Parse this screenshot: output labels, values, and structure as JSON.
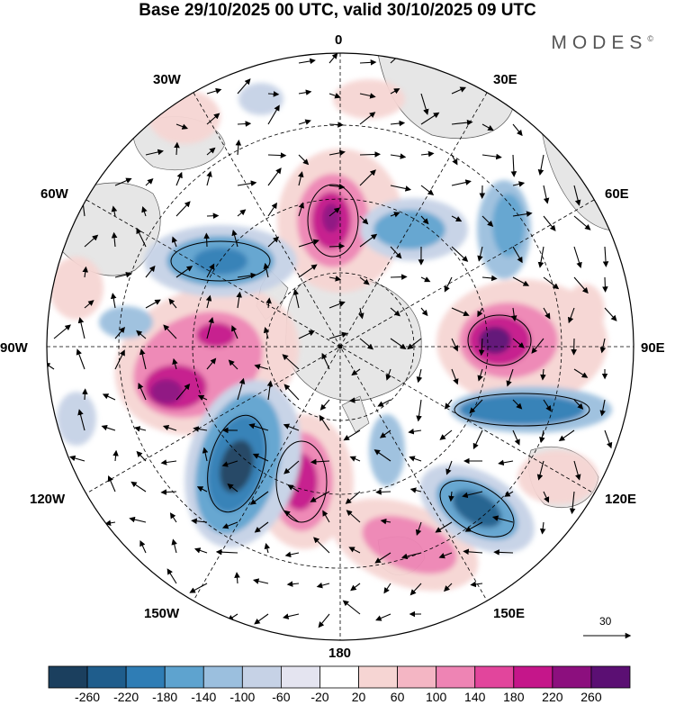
{
  "title": "Base 29/10/2025 00 UTC, valid 30/10/2025 09 UTC",
  "brand": "MODES",
  "brand_mark": "©",
  "longitude_labels": {
    "lon_0": "0",
    "lon_30e": "30E",
    "lon_60e": "60E",
    "lon_90e": "90E",
    "lon_120e": "120E",
    "lon_150e": "150E",
    "lon_180": "180",
    "lon_150w": "150W",
    "lon_120w": "120W",
    "lon_90w": "90W",
    "lon_60w": "60W",
    "lon_30w": "30W"
  },
  "vector_scale_label": "30",
  "colorbar": {
    "labels": [
      "-260",
      "-220",
      "-180",
      "-140",
      "-100",
      "-60",
      "-20",
      "20",
      "60",
      "100",
      "140",
      "180",
      "220",
      "260"
    ],
    "colors": [
      "#1b3f5e",
      "#1f5d8c",
      "#2f7db5",
      "#5ea3cf",
      "#9bbfde",
      "#c6d2e6",
      "#e4e4f0",
      "#ffffff",
      "#f6d5d3",
      "#f4b6c4",
      "#ee84b4",
      "#e2459c",
      "#c5168a",
      "#8c0f7e",
      "#5b0f73"
    ]
  },
  "anomaly_features": [
    {
      "sign": "positive",
      "strength": "strong",
      "region": "near 0 / 10W, 55S"
    },
    {
      "sign": "positive",
      "strength": "strong",
      "region": "90E-100E"
    },
    {
      "sign": "positive",
      "strength": "strong",
      "region": "80W-90W"
    },
    {
      "sign": "positive",
      "strength": "strong",
      "region": "150W-160W"
    },
    {
      "sign": "positive",
      "strength": "moderate",
      "region": "150E-170E"
    },
    {
      "sign": "negative",
      "strength": "strong",
      "region": "120W-130W"
    },
    {
      "sign": "negative",
      "strength": "strong",
      "region": "120E-135E"
    },
    {
      "sign": "negative",
      "strength": "moderate",
      "region": "40W-60W"
    },
    {
      "sign": "negative",
      "strength": "moderate",
      "region": "20E-40E"
    },
    {
      "sign": "negative",
      "strength": "moderate",
      "region": "100E-110E"
    }
  ]
}
